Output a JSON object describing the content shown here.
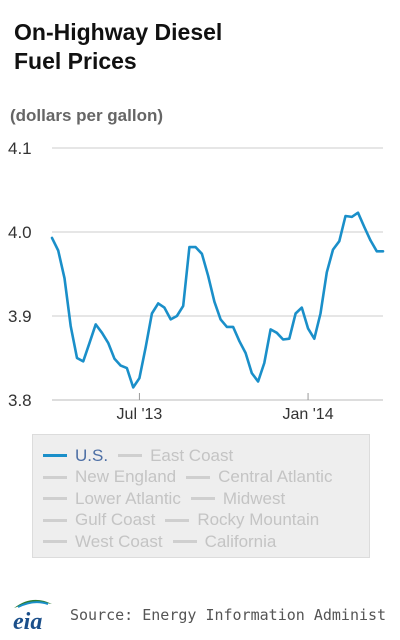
{
  "title_lines": [
    "On-Highway Diesel",
    "Fuel Prices"
  ],
  "unit_label": "(dollars per gallon)",
  "source_text": "Source: Energy Information Administ",
  "logo_text": "eia",
  "colors": {
    "series": "#1a8fc9",
    "grid": "#cccccc",
    "legend_active_text": "#4d6fa5",
    "legend_inactive_text": "#c4c4c4",
    "legend_bg": "#eeeeee"
  },
  "legend_rows": [
    [
      {
        "label": "U.S.",
        "active": true
      },
      {
        "label": "East Coast",
        "active": false
      }
    ],
    [
      {
        "label": "New England",
        "active": false
      },
      {
        "label": "Central Atlantic",
        "active": false
      }
    ],
    [
      {
        "label": "Lower Atlantic",
        "active": false
      },
      {
        "label": "Midwest",
        "active": false
      }
    ],
    [
      {
        "label": "Gulf Coast",
        "active": false
      },
      {
        "label": "Rocky Mountain",
        "active": false
      }
    ],
    [
      {
        "label": "West Coast",
        "active": false
      },
      {
        "label": "California",
        "active": false
      }
    ]
  ],
  "chart_data": {
    "type": "line",
    "title": "On-Highway Diesel Fuel Prices",
    "ylabel": "(dollars per gallon)",
    "ylim": [
      3.8,
      4.1
    ],
    "yticks": [
      "3.8",
      "3.9",
      "4.0",
      "4.1"
    ],
    "xticks": [
      {
        "label": "Jul '13",
        "date": "2013-07-01"
      },
      {
        "label": "Jan '14",
        "date": "2014-01-06"
      }
    ],
    "x_start": "2013-03-25",
    "x_end": "2014-03-31",
    "grid": true,
    "legend_position": "bottom",
    "series": [
      {
        "name": "U.S.",
        "x": [
          "2013-03-25",
          "2013-04-01",
          "2013-04-08",
          "2013-04-15",
          "2013-04-22",
          "2013-04-29",
          "2013-05-06",
          "2013-05-13",
          "2013-05-20",
          "2013-05-27",
          "2013-06-03",
          "2013-06-10",
          "2013-06-17",
          "2013-06-24",
          "2013-07-01",
          "2013-07-08",
          "2013-07-15",
          "2013-07-22",
          "2013-07-29",
          "2013-08-05",
          "2013-08-12",
          "2013-08-19",
          "2013-08-26",
          "2013-09-02",
          "2013-09-09",
          "2013-09-16",
          "2013-09-23",
          "2013-09-30",
          "2013-10-07",
          "2013-10-14",
          "2013-10-21",
          "2013-10-28",
          "2013-11-04",
          "2013-11-11",
          "2013-11-18",
          "2013-11-25",
          "2013-12-02",
          "2013-12-09",
          "2013-12-16",
          "2013-12-23",
          "2013-12-30",
          "2014-01-06",
          "2014-01-13",
          "2014-01-20",
          "2014-01-27",
          "2014-02-03",
          "2014-02-10",
          "2014-02-17",
          "2014-02-24",
          "2014-03-03",
          "2014-03-10",
          "2014-03-17",
          "2014-03-24",
          "2014-03-31"
        ],
        "values": [
          3.993,
          3.978,
          3.945,
          3.888,
          3.85,
          3.846,
          3.868,
          3.89,
          3.88,
          3.868,
          3.849,
          3.841,
          3.838,
          3.815,
          3.826,
          3.863,
          3.903,
          3.915,
          3.91,
          3.896,
          3.9,
          3.912,
          3.982,
          3.982,
          3.974,
          3.948,
          3.917,
          3.896,
          3.887,
          3.887,
          3.87,
          3.856,
          3.832,
          3.822,
          3.844,
          3.884,
          3.88,
          3.872,
          3.873,
          3.903,
          3.91,
          3.885,
          3.873,
          3.903,
          3.952,
          3.979,
          3.989,
          4.019,
          4.018,
          4.023,
          4.006,
          3.99,
          3.977,
          3.977
        ]
      }
    ]
  }
}
